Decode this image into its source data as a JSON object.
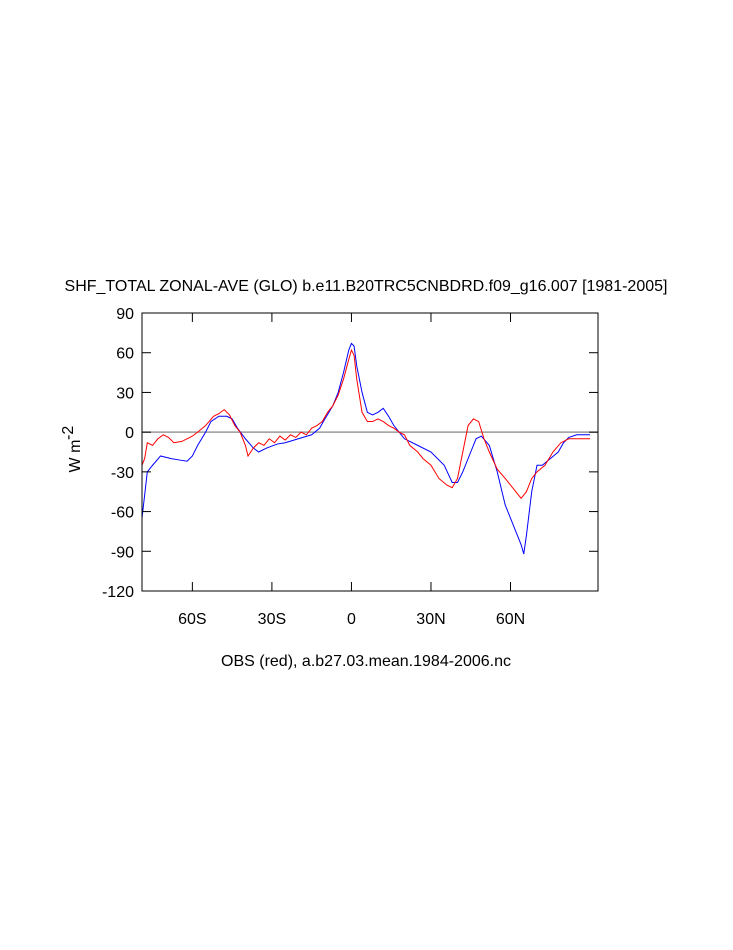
{
  "chart_data": {
    "type": "line",
    "title": "SHF_TOTAL ZONAL-AVE (GLO) b.e11.B20TRC5CNBDRD.f09_g16.007 [1981-2005]",
    "ylabel": "W m",
    "ylabel_sup": "-2",
    "footnote": "OBS (red), a.b27.03.mean.1984-2006.nc",
    "xlim": [
      -79,
      93
    ],
    "ylim": [
      -120,
      90
    ],
    "xticks": [
      {
        "value": -60,
        "label": "60S"
      },
      {
        "value": -30,
        "label": "30S"
      },
      0,
      {
        "value": 30,
        "label": "30N"
      },
      {
        "value": 60,
        "label": "60N"
      }
    ],
    "yticks": [
      -120,
      -90,
      -60,
      -30,
      0,
      30,
      60,
      90
    ],
    "reference_line": 0,
    "series": [
      {
        "color": "#0000ff",
        "x": [
          -79,
          -77,
          -75,
          -72,
          -68,
          -65,
          -62,
          -60,
          -58,
          -55,
          -53,
          -50,
          -47,
          -45,
          -43,
          -40,
          -37,
          -35,
          -32,
          -28,
          -25,
          -20,
          -15,
          -12,
          -10,
          -7,
          -5,
          -3,
          -1,
          0,
          1,
          2,
          4,
          6,
          8,
          10,
          12,
          14,
          16,
          18,
          20,
          25,
          30,
          35,
          38,
          40,
          42,
          45,
          47,
          49,
          52,
          55,
          58,
          60,
          62,
          64,
          65,
          66,
          68,
          70,
          72,
          75,
          78,
          80,
          82,
          85,
          90
        ],
        "values": [
          -65,
          -30,
          -25,
          -18,
          -20,
          -21,
          -22,
          -18,
          -10,
          0,
          8,
          12,
          12,
          10,
          3,
          -5,
          -12,
          -15,
          -12,
          -9,
          -8,
          -5,
          -2,
          3,
          10,
          20,
          30,
          45,
          62,
          67,
          65,
          50,
          30,
          15,
          13,
          15,
          18,
          12,
          5,
          0,
          -5,
          -10,
          -15,
          -25,
          -38,
          -38,
          -30,
          -15,
          -5,
          -3,
          -10,
          -30,
          -55,
          -65,
          -75,
          -85,
          -92,
          -78,
          -45,
          -25,
          -25,
          -20,
          -15,
          -8,
          -4,
          -2,
          -2
        ]
      },
      {
        "color": "#ff0000",
        "x": [
          -79,
          -78,
          -77,
          -75,
          -73,
          -71,
          -69,
          -67,
          -64,
          -62,
          -60,
          -58,
          -55,
          -52,
          -50,
          -48,
          -46,
          -44,
          -42,
          -40,
          -39,
          -37,
          -35,
          -33,
          -31,
          -29,
          -27,
          -25,
          -23,
          -21,
          -19,
          -17,
          -15,
          -13,
          -11,
          -9,
          -7,
          -5,
          -3,
          -1,
          0,
          1,
          2,
          4,
          6,
          8,
          10,
          12,
          14,
          16,
          18,
          20,
          22,
          25,
          27,
          30,
          33,
          36,
          38,
          40,
          42,
          44,
          46,
          48,
          50,
          52,
          55,
          58,
          60,
          62,
          64,
          66,
          68,
          70,
          73,
          76,
          79,
          82,
          85,
          90
        ],
        "values": [
          -25,
          -20,
          -8,
          -10,
          -5,
          -2,
          -4,
          -8,
          -7,
          -5,
          -3,
          0,
          5,
          12,
          14,
          17,
          13,
          5,
          0,
          -10,
          -18,
          -12,
          -8,
          -10,
          -5,
          -8,
          -3,
          -6,
          -2,
          -4,
          0,
          -2,
          3,
          5,
          8,
          15,
          20,
          28,
          40,
          55,
          62,
          58,
          40,
          15,
          8,
          8,
          10,
          8,
          5,
          3,
          0,
          -2,
          -10,
          -15,
          -20,
          -25,
          -35,
          -40,
          -42,
          -35,
          -15,
          5,
          10,
          8,
          -5,
          -15,
          -28,
          -35,
          -40,
          -45,
          -50,
          -45,
          -35,
          -30,
          -25,
          -15,
          -8,
          -5,
          -5,
          -5
        ]
      }
    ]
  }
}
